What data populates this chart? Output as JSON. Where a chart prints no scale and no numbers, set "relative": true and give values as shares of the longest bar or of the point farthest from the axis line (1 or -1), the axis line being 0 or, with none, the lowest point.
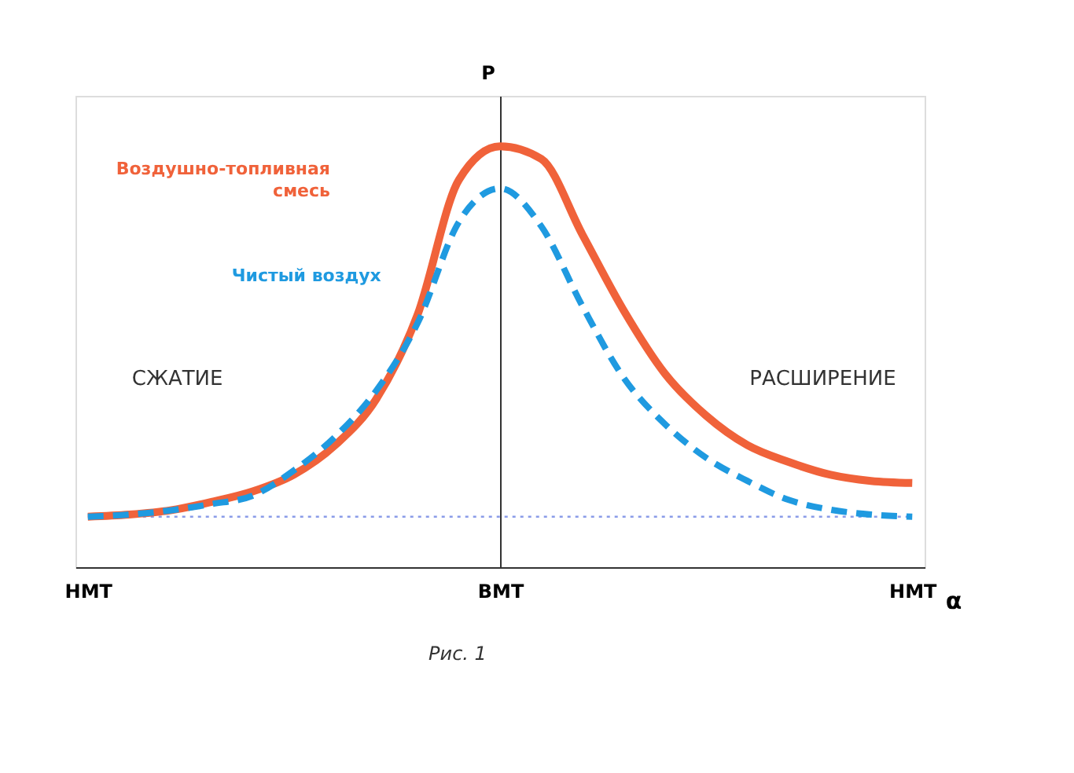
{
  "chart_data": {
    "type": "line",
    "relative": true,
    "ylabel": "Р",
    "xlabel": "α",
    "categories": [
      "НМТ",
      null,
      null,
      null,
      null,
      null,
      null,
      null,
      null,
      null,
      "ВМТ",
      null,
      null,
      null,
      null,
      null,
      null,
      null,
      null,
      null,
      "НМТ"
    ],
    "series": [
      {
        "name": "Воздушно-топливная смесь",
        "color": "#f0623a",
        "line_style": "solid",
        "values": [
          0.12,
          0.125,
          0.135,
          0.155,
          0.18,
          0.22,
          0.29,
          0.4,
          0.6,
          0.92,
          1,
          0.97,
          0.79,
          0.61,
          0.46,
          0.36,
          0.29,
          0.25,
          0.22,
          0.205,
          0.2
        ]
      },
      {
        "name": "Чистый воздух",
        "color": "#1f9ae0",
        "line_style": "dashed",
        "values": [
          0.12,
          0.125,
          0.135,
          0.15,
          0.17,
          0.23,
          0.31,
          0.42,
          0.58,
          0.82,
          0.9,
          0.81,
          0.62,
          0.45,
          0.34,
          0.26,
          0.205,
          0.16,
          0.137,
          0.125,
          0.12
        ]
      }
    ],
    "ref_lines": [
      {
        "axis": "y",
        "value": 0.12,
        "color": "#8a9be8",
        "line_style": "dotted"
      }
    ],
    "annotations": [
      "СЖАТИЕ",
      "РАСШИРЕНИЕ",
      "Рис. 1"
    ]
  }
}
